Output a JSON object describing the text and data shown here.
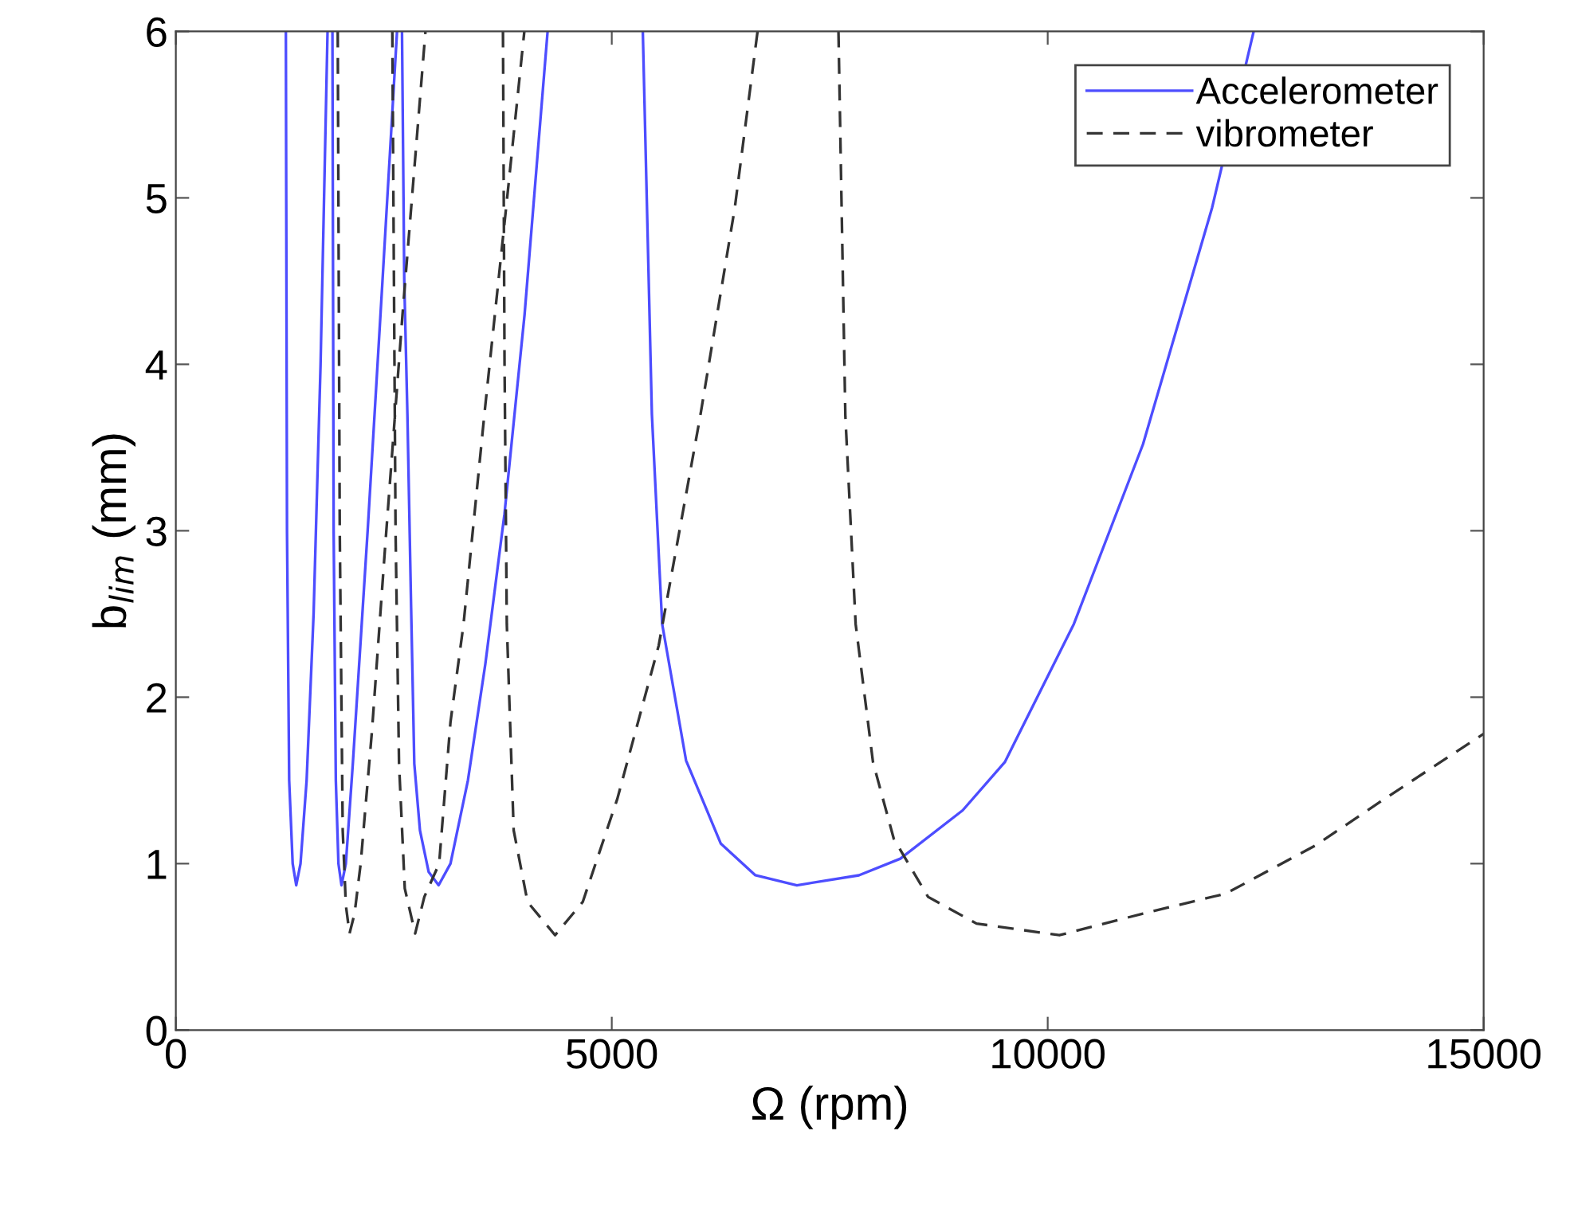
{
  "chart_data": {
    "type": "line",
    "xlabel": "Ω (rpm)",
    "ylabel": "b$_{lim}$ (mm)",
    "xlim": [
      0,
      15000
    ],
    "ylim": [
      0,
      6
    ],
    "xticks": [
      0,
      5000,
      10000,
      15000
    ],
    "yticks": [
      0,
      1,
      2,
      3,
      4,
      5,
      6
    ],
    "grid": false,
    "legend": "top right",
    "series": [
      {
        "name": "Accelerometer",
        "color": "#4d4dff",
        "line_style": "solid",
        "x": [
          1262,
          1275,
          1300,
          1340,
          1381,
          1430,
          1500,
          1580,
          1660,
          1740,
          null,
          1796,
          1810,
          1835,
          1865,
          1900,
          1950,
          2030,
          2200,
          2370,
          2537,
          null,
          2594,
          2620,
          2656,
          2700,
          2735,
          2800,
          2900,
          3014,
          3150,
          3350,
          3550,
          3769,
          4000,
          4264,
          null,
          5356,
          5460,
          5578,
          5852,
          6251,
          6647,
          7123,
          7835,
          8310,
          9024,
          9508,
          10300,
          11093,
          11885,
          12362
        ],
        "values": [
          6,
          3,
          1.5,
          1.0,
          0.87,
          1.0,
          1.5,
          2.5,
          4,
          6,
          null,
          6,
          3,
          1.5,
          1.0,
          0.87,
          1.0,
          1.6,
          3,
          4.5,
          6,
          null,
          6,
          4.5,
          3.7,
          2.5,
          1.6,
          1.2,
          0.95,
          0.87,
          1.0,
          1.5,
          2.2,
          3.1,
          4.3,
          6,
          null,
          6,
          3.7,
          2.44,
          1.62,
          1.12,
          0.93,
          0.87,
          0.93,
          1.03,
          1.32,
          1.61,
          2.44,
          3.52,
          4.94,
          6
        ]
      },
      {
        "name": "vibrometer",
        "color": "#333333",
        "line_style": "dashed",
        "x": [
          1857,
          1880,
          1914,
          1950,
          1992,
          2050,
          2120,
          2250,
          2400,
          2600,
          2863,
          null,
          2483,
          2520,
          2560,
          2626,
          2745,
          2850,
          3020,
          3150,
          3300,
          3537,
          3800,
          3997,
          null,
          3752,
          3770,
          3796,
          3875,
          4034,
          4350,
          4667,
          5064,
          5538,
          6015,
          6411,
          6672,
          null,
          7600,
          7679,
          7797,
          7996,
          8234,
          8628,
          9183,
          10134,
          11093,
          12043,
          13074,
          13866,
          15000
        ],
        "values": [
          6,
          3,
          1.2,
          0.75,
          0.58,
          0.7,
          1.0,
          1.8,
          2.9,
          4.3,
          6,
          null,
          6,
          3,
          1.6,
          0.85,
          0.58,
          0.8,
          1.0,
          1.85,
          2.44,
          3.69,
          5.0,
          6,
          null,
          6,
          4,
          2.44,
          1.2,
          0.77,
          0.57,
          0.77,
          1.39,
          2.31,
          3.69,
          4.94,
          6,
          null,
          6,
          3.69,
          2.44,
          1.61,
          1.15,
          0.8,
          0.64,
          0.57,
          0.7,
          0.82,
          1.11,
          1.39,
          1.78
        ]
      }
    ]
  }
}
